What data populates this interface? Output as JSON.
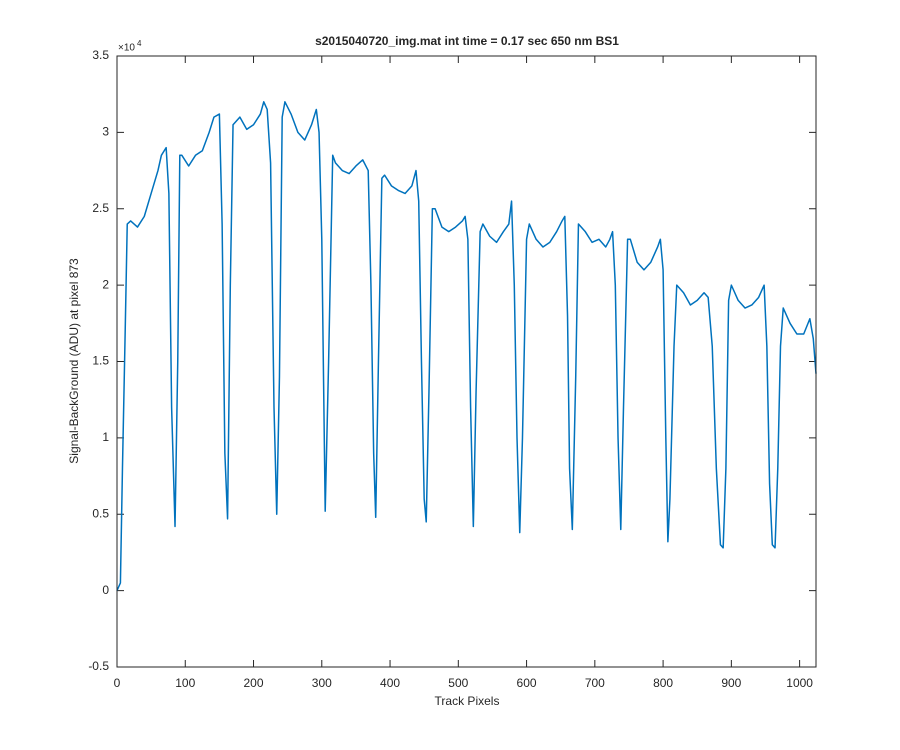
{
  "chart_data": {
    "type": "line",
    "title": "s2015040720_img.mat int time = 0.17 sec  650 nm BS1",
    "xlabel": "Track Pixels",
    "ylabel": "Signal-BackGround (ADU) at pixel 873",
    "y_multiplier": {
      "text": "×10",
      "exponent": 4
    },
    "xlim": [
      0,
      1024
    ],
    "ylim": [
      -0.5,
      3.5
    ],
    "xticks": [
      0,
      100,
      200,
      300,
      400,
      500,
      600,
      700,
      800,
      900,
      1000
    ],
    "yticks": [
      -0.5,
      0,
      0.5,
      1,
      1.5,
      2,
      2.5,
      3,
      3.5
    ],
    "grid": false,
    "series": [
      {
        "color": "#0072bd",
        "x": [
          0,
          5,
          8,
          12,
          15,
          20,
          30,
          40,
          50,
          60,
          65,
          72,
          76,
          80,
          85,
          89,
          92,
          95,
          105,
          115,
          125,
          135,
          142,
          150,
          154,
          158,
          162,
          166,
          170,
          180,
          190,
          200,
          210,
          215,
          220,
          225,
          230,
          234,
          238,
          242,
          246,
          255,
          265,
          275,
          285,
          292,
          296,
          300,
          305,
          310,
          316,
          320,
          330,
          340,
          350,
          360,
          368,
          372,
          376,
          379,
          383,
          388,
          392,
          402,
          412,
          422,
          432,
          438,
          442,
          446,
          450,
          453,
          457,
          462,
          466,
          476,
          486,
          496,
          506,
          510,
          514,
          518,
          522,
          526,
          532,
          536,
          546,
          556,
          566,
          574,
          578,
          582,
          586,
          590,
          594,
          600,
          604,
          614,
          624,
          634,
          644,
          652,
          656,
          660,
          663,
          667,
          672,
          676,
          686,
          696,
          706,
          716,
          722,
          726,
          730,
          734,
          738,
          742,
          748,
          752,
          762,
          772,
          782,
          792,
          796,
          800,
          804,
          807,
          810,
          816,
          820,
          830,
          840,
          850,
          860,
          866,
          872,
          878,
          884,
          888,
          892,
          896,
          900,
          910,
          920,
          930,
          940,
          948,
          952,
          956,
          960,
          964,
          968,
          972,
          976,
          986,
          996,
          1006,
          1015,
          1020,
          1024
        ],
        "values": [
          0,
          0.05,
          0.8,
          1.7,
          2.4,
          2.42,
          2.38,
          2.45,
          2.6,
          2.75,
          2.85,
          2.9,
          2.6,
          1.2,
          0.42,
          1.5,
          2.85,
          2.85,
          2.78,
          2.85,
          2.88,
          3.0,
          3.1,
          3.12,
          2.4,
          0.9,
          0.47,
          2.0,
          3.05,
          3.1,
          3.02,
          3.05,
          3.12,
          3.2,
          3.15,
          2.8,
          1.2,
          0.5,
          1.4,
          3.1,
          3.2,
          3.12,
          3.0,
          2.95,
          3.05,
          3.15,
          3.0,
          2.3,
          0.52,
          1.5,
          2.85,
          2.8,
          2.75,
          2.73,
          2.78,
          2.82,
          2.75,
          2.0,
          0.9,
          0.48,
          1.5,
          2.7,
          2.72,
          2.65,
          2.62,
          2.6,
          2.65,
          2.75,
          2.55,
          1.5,
          0.6,
          0.45,
          1.3,
          2.5,
          2.5,
          2.38,
          2.35,
          2.38,
          2.42,
          2.45,
          2.3,
          1.2,
          0.42,
          1.3,
          2.35,
          2.4,
          2.32,
          2.28,
          2.35,
          2.4,
          2.55,
          2.0,
          1.0,
          0.38,
          1.0,
          2.3,
          2.4,
          2.3,
          2.25,
          2.28,
          2.35,
          2.42,
          2.45,
          1.8,
          0.8,
          0.4,
          1.4,
          2.4,
          2.35,
          2.28,
          2.3,
          2.25,
          2.3,
          2.35,
          2.0,
          1.0,
          0.4,
          1.2,
          2.3,
          2.3,
          2.15,
          2.1,
          2.15,
          2.25,
          2.3,
          2.1,
          1.0,
          0.32,
          0.6,
          1.6,
          2.0,
          1.95,
          1.87,
          1.9,
          1.95,
          1.92,
          1.6,
          0.8,
          0.3,
          0.28,
          0.8,
          1.9,
          2.0,
          1.9,
          1.85,
          1.87,
          1.92,
          2.0,
          1.6,
          0.7,
          0.3,
          0.28,
          0.8,
          1.6,
          1.85,
          1.75,
          1.68,
          1.68,
          1.78,
          1.65,
          1.42
        ]
      }
    ]
  }
}
